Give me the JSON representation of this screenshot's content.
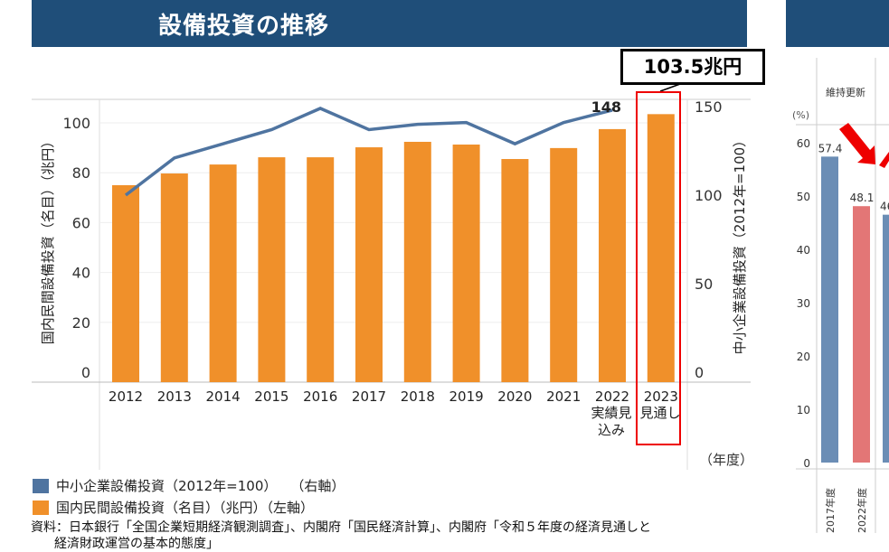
{
  "header": {
    "title": "設備投資の推移"
  },
  "callout": "103.5兆円",
  "chart_data": [
    {
      "type": "bar+line",
      "categories": [
        "2012",
        "2013",
        "2014",
        "2015",
        "2016",
        "2017",
        "2018",
        "2019",
        "2020",
        "2021",
        "2022",
        "2023"
      ],
      "category_sublabels": {
        "2022": "実績見込み",
        "2023": "見通し"
      },
      "xunit": "（年度）",
      "series": [
        {
          "name": "国内民間設備投資（名目）（兆円）（左軸）",
          "type": "bar",
          "axis": "left",
          "color": "#f0902a",
          "values": [
            75.0,
            79.7,
            83.3,
            86.2,
            86.2,
            90.2,
            92.4,
            91.3,
            85.5,
            89.9,
            97.5,
            103.5
          ]
        },
        {
          "name": "中小企業設備投資（2012年=100）（右軸）",
          "type": "line",
          "axis": "right",
          "color": "#4f74a0",
          "values": [
            100,
            121,
            129,
            137,
            149,
            137,
            140,
            141,
            129,
            141,
            148,
            null
          ]
        }
      ],
      "data_labels": {
        "line_2022": "148"
      },
      "ylabel_left": "国内民間設備投資（名目）（兆円）",
      "ylabel_right": "中小企業設備投資（2012年=100）",
      "ylim_left": [
        0,
        100
      ],
      "yticks_left": [
        "0",
        "20",
        "40",
        "60",
        "80",
        "100"
      ],
      "ylim_right": [
        0,
        150
      ],
      "yticks_right": [
        "0",
        "50",
        "100",
        "150"
      ],
      "grid": true,
      "legend": "bottom-left"
    },
    {
      "type": "bar",
      "group_label": "維持更新",
      "ylabel": "(%)",
      "yticks": [
        "0",
        "10",
        "20",
        "30",
        "40",
        "50",
        "60"
      ],
      "categories": [
        "2017年度",
        "2022年度"
      ],
      "values": [
        57.4,
        48.1
      ],
      "colors": [
        "#6b8db5",
        "#e37676"
      ],
      "partial_label": "46"
    }
  ],
  "legend": [
    {
      "label": "中小企業設備投資（2012年=100）　　（右軸）",
      "color": "#4f74a0"
    },
    {
      "label": "国内民間設備投資（名目）（兆円）（左軸）",
      "color": "#f0902a"
    }
  ],
  "source": "資料：日本銀行「全国企業短期経済観測調査」、内閣府「国民経済計算」、内閣府「令和５年度の経済見通しと",
  "source2": "経済財政運営の基本的態度」"
}
